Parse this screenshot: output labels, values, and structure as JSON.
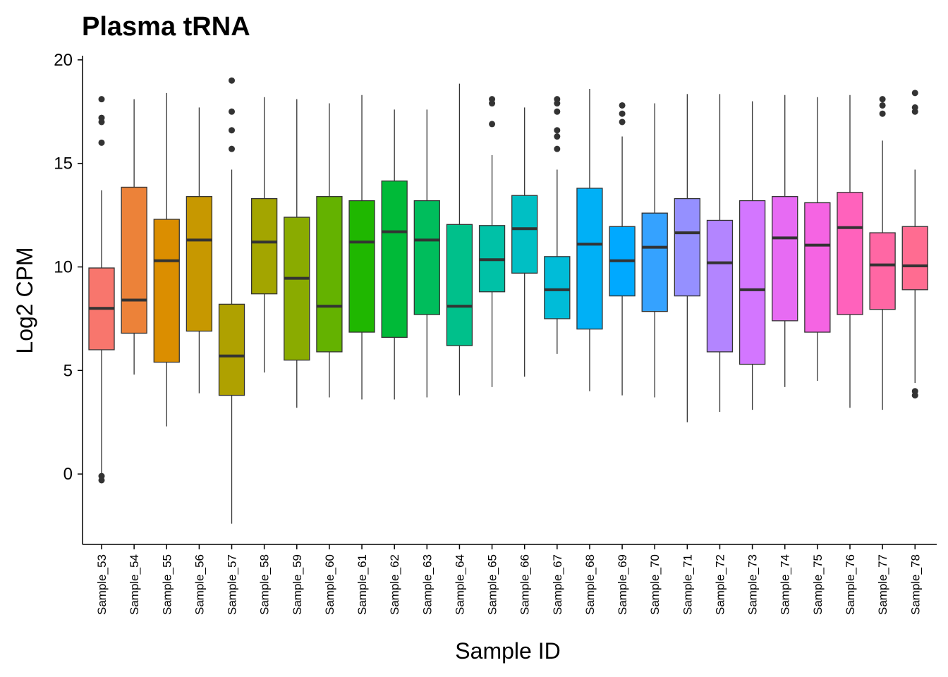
{
  "chart_data": {
    "type": "boxplot",
    "title": "Plasma tRNA",
    "xlabel": "Sample ID",
    "ylabel": "Log2 CPM",
    "ylim": [
      -3.4,
      20.2
    ],
    "yticks": [
      0,
      5,
      10,
      15,
      20
    ],
    "grid": false,
    "legend": "none",
    "boxes": [
      {
        "category": "Sample_53",
        "color": "#F8766D",
        "whisker_low": 0.0,
        "q1": 6.0,
        "median": 8.0,
        "q3": 9.95,
        "whisker_high": 13.7,
        "outliers": [
          16.0,
          17.0,
          17.2,
          18.1,
          -0.1,
          -0.3
        ]
      },
      {
        "category": "Sample_54",
        "color": "#EC8239",
        "whisker_low": 4.8,
        "q1": 6.8,
        "median": 8.4,
        "q3": 13.85,
        "whisker_high": 18.1,
        "outliers": []
      },
      {
        "category": "Sample_55",
        "color": "#DB8E00",
        "whisker_low": 2.3,
        "q1": 5.4,
        "median": 10.3,
        "q3": 12.3,
        "whisker_high": 18.4,
        "outliers": []
      },
      {
        "category": "Sample_56",
        "color": "#C79800",
        "whisker_low": 3.9,
        "q1": 6.9,
        "median": 11.3,
        "q3": 13.4,
        "whisker_high": 17.7,
        "outliers": []
      },
      {
        "category": "Sample_57",
        "color": "#AFA100",
        "whisker_low": -2.4,
        "q1": 3.8,
        "median": 5.7,
        "q3": 8.2,
        "whisker_high": 14.7,
        "outliers": [
          15.7,
          16.6,
          17.5,
          19.0
        ]
      },
      {
        "category": "Sample_58",
        "color": "#A3A500",
        "whisker_low": 4.9,
        "q1": 8.7,
        "median": 11.2,
        "q3": 13.3,
        "whisker_high": 18.2,
        "outliers": []
      },
      {
        "category": "Sample_59",
        "color": "#8AAB00",
        "whisker_low": 3.2,
        "q1": 5.5,
        "median": 9.45,
        "q3": 12.4,
        "whisker_high": 18.1,
        "outliers": []
      },
      {
        "category": "Sample_60",
        "color": "#64B200",
        "whisker_low": 3.7,
        "q1": 5.9,
        "median": 8.1,
        "q3": 13.4,
        "whisker_high": 17.9,
        "outliers": []
      },
      {
        "category": "Sample_61",
        "color": "#1FB700",
        "whisker_low": 3.6,
        "q1": 6.85,
        "median": 11.2,
        "q3": 13.2,
        "whisker_high": 18.3,
        "outliers": []
      },
      {
        "category": "Sample_62",
        "color": "#00BA38",
        "whisker_low": 3.6,
        "q1": 6.6,
        "median": 11.7,
        "q3": 14.15,
        "whisker_high": 17.6,
        "outliers": []
      },
      {
        "category": "Sample_63",
        "color": "#00BD5C",
        "whisker_low": 3.7,
        "q1": 7.7,
        "median": 11.3,
        "q3": 13.2,
        "whisker_high": 17.6,
        "outliers": []
      },
      {
        "category": "Sample_64",
        "color": "#00C08B",
        "whisker_low": 3.8,
        "q1": 6.2,
        "median": 8.1,
        "q3": 12.05,
        "whisker_high": 18.85,
        "outliers": []
      },
      {
        "category": "Sample_65",
        "color": "#00C1A7",
        "whisker_low": 4.2,
        "q1": 8.8,
        "median": 10.35,
        "q3": 12.0,
        "whisker_high": 15.4,
        "outliers": [
          16.9,
          17.9,
          18.1
        ]
      },
      {
        "category": "Sample_66",
        "color": "#00BFC4",
        "whisker_low": 4.7,
        "q1": 9.7,
        "median": 11.85,
        "q3": 13.45,
        "whisker_high": 17.7,
        "outliers": []
      },
      {
        "category": "Sample_67",
        "color": "#00BCD8",
        "whisker_low": 5.8,
        "q1": 7.5,
        "median": 8.9,
        "q3": 10.5,
        "whisker_high": 14.7,
        "outliers": [
          15.7,
          16.3,
          16.6,
          17.5,
          17.9,
          18.1
        ]
      },
      {
        "category": "Sample_68",
        "color": "#00B0F6",
        "whisker_low": 4.0,
        "q1": 7.0,
        "median": 11.1,
        "q3": 13.8,
        "whisker_high": 18.6,
        "outliers": []
      },
      {
        "category": "Sample_69",
        "color": "#00A9FF",
        "whisker_low": 3.8,
        "q1": 8.6,
        "median": 10.3,
        "q3": 11.95,
        "whisker_high": 16.3,
        "outliers": [
          17.0,
          17.4,
          17.8
        ]
      },
      {
        "category": "Sample_70",
        "color": "#35A2FF",
        "whisker_low": 3.7,
        "q1": 7.85,
        "median": 10.95,
        "q3": 12.6,
        "whisker_high": 17.9,
        "outliers": []
      },
      {
        "category": "Sample_71",
        "color": "#9590FF",
        "whisker_low": 2.5,
        "q1": 8.6,
        "median": 11.65,
        "q3": 13.3,
        "whisker_high": 18.35,
        "outliers": []
      },
      {
        "category": "Sample_72",
        "color": "#B385FF",
        "whisker_low": 3.0,
        "q1": 5.9,
        "median": 10.2,
        "q3": 12.25,
        "whisker_high": 18.35,
        "outliers": []
      },
      {
        "category": "Sample_73",
        "color": "#D376FF",
        "whisker_low": 3.1,
        "q1": 5.3,
        "median": 8.9,
        "q3": 13.2,
        "whisker_high": 18.0,
        "outliers": []
      },
      {
        "category": "Sample_74",
        "color": "#E76BF3",
        "whisker_low": 4.2,
        "q1": 7.4,
        "median": 11.4,
        "q3": 13.4,
        "whisker_high": 18.3,
        "outliers": []
      },
      {
        "category": "Sample_75",
        "color": "#F564E3",
        "whisker_low": 4.5,
        "q1": 6.85,
        "median": 11.05,
        "q3": 13.1,
        "whisker_high": 18.2,
        "outliers": []
      },
      {
        "category": "Sample_76",
        "color": "#FF62BC",
        "whisker_low": 3.2,
        "q1": 7.7,
        "median": 11.9,
        "q3": 13.6,
        "whisker_high": 18.3,
        "outliers": []
      },
      {
        "category": "Sample_77",
        "color": "#FF67A4",
        "whisker_low": 3.1,
        "q1": 7.95,
        "median": 10.1,
        "q3": 11.65,
        "whisker_high": 16.1,
        "outliers": [
          17.4,
          17.8,
          18.1
        ]
      },
      {
        "category": "Sample_78",
        "color": "#FF6C91",
        "whisker_low": 4.4,
        "q1": 8.9,
        "median": 10.05,
        "q3": 11.95,
        "whisker_high": 14.7,
        "outliers": [
          3.8,
          4.0,
          17.5,
          17.7,
          18.4
        ]
      }
    ]
  }
}
